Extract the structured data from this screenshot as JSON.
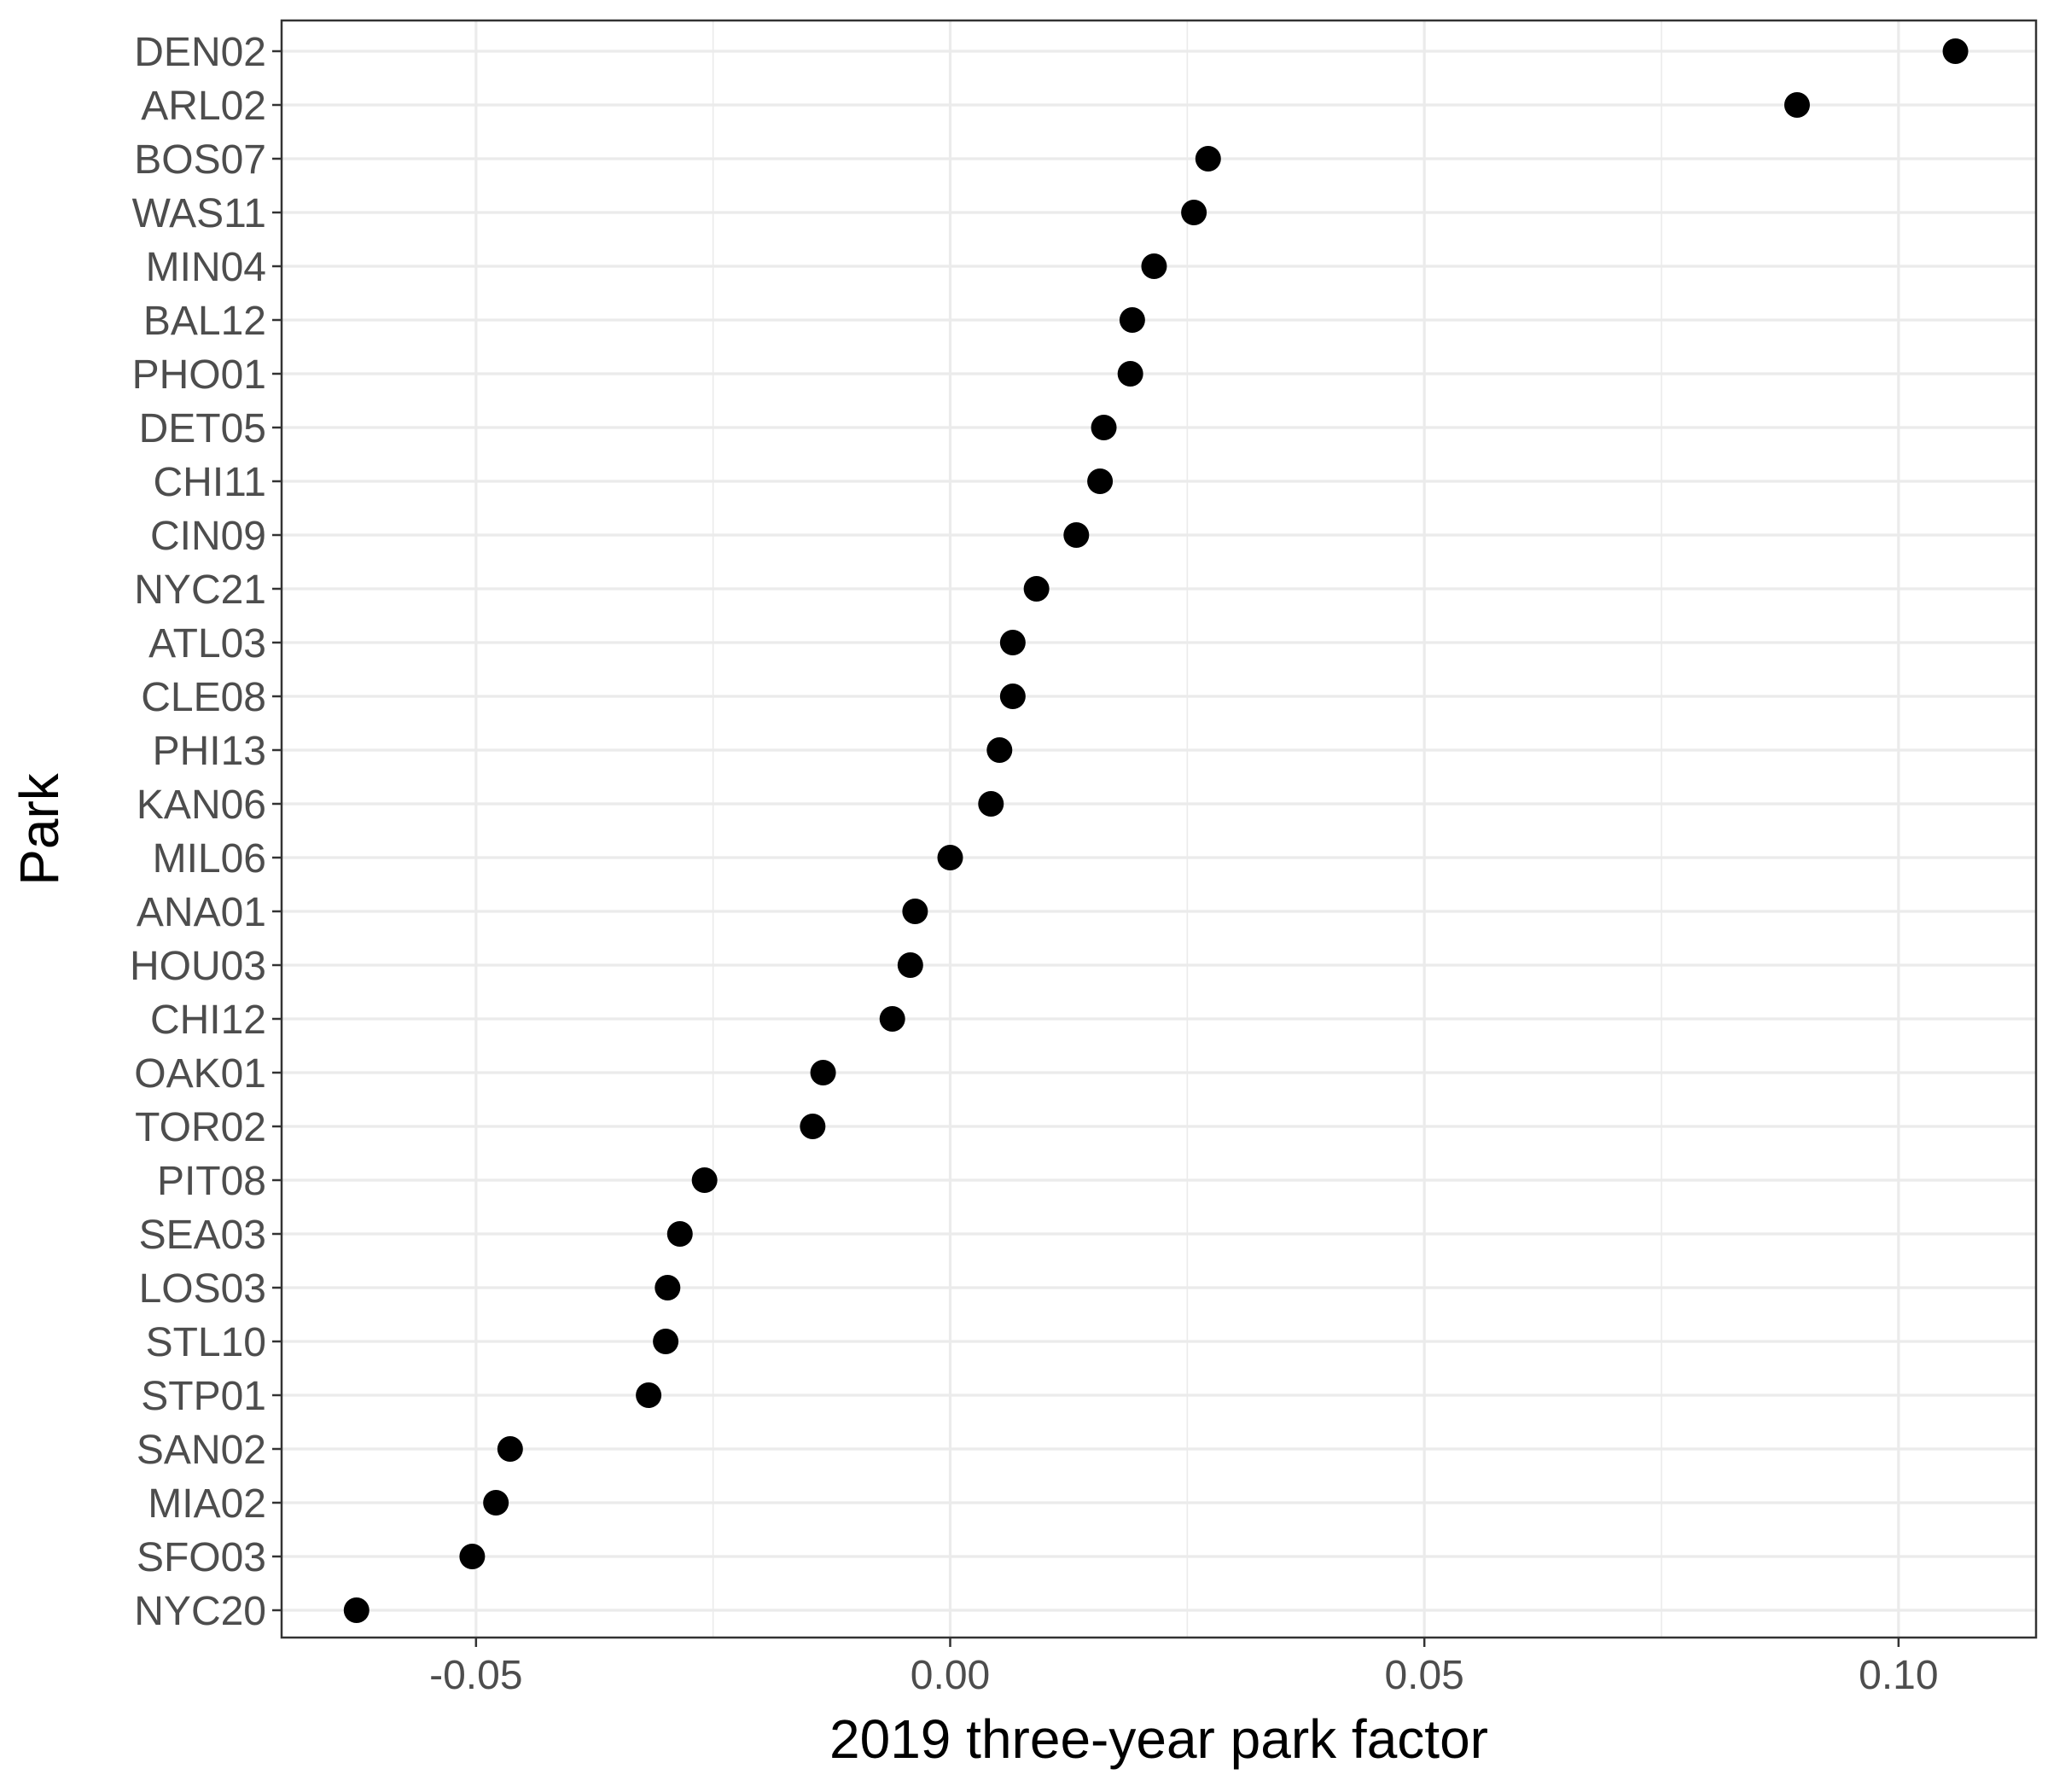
{
  "chart_data": {
    "type": "scatter",
    "title": "",
    "xlabel": "2019 three-year park factor",
    "ylabel": "Park",
    "xlim": [
      -0.0705,
      0.1145
    ],
    "x_ticks": [
      -0.05,
      0.0,
      0.05,
      0.1
    ],
    "x_tick_labels": [
      "-0.05",
      "0.00",
      "0.05",
      "0.10"
    ],
    "grid": true,
    "legend": "none",
    "colors": {
      "point": "#000000",
      "grid": "#ebebeb",
      "panel_border": "#333333",
      "tick_text": "#4d4d4d"
    },
    "categories": [
      "DEN02",
      "ARL02",
      "BOS07",
      "WAS11",
      "MIN04",
      "BAL12",
      "PHO01",
      "DET05",
      "CHI11",
      "CIN09",
      "NYC21",
      "ATL03",
      "CLE08",
      "PHI13",
      "KAN06",
      "MIL06",
      "ANA01",
      "HOU03",
      "CHI12",
      "OAK01",
      "TOR02",
      "PIT08",
      "SEA03",
      "LOS03",
      "STL10",
      "STP01",
      "SAN02",
      "MIA02",
      "SFO03",
      "NYC20"
    ],
    "values": [
      0.106,
      0.0893,
      0.0272,
      0.0257,
      0.0215,
      0.0192,
      0.019,
      0.0162,
      0.0158,
      0.0133,
      0.0091,
      0.0066,
      0.0066,
      0.0052,
      0.0043,
      0.0,
      -0.0037,
      -0.0042,
      -0.0061,
      -0.0134,
      -0.0145,
      -0.0259,
      -0.0285,
      -0.0298,
      -0.03,
      -0.0318,
      -0.0464,
      -0.0479,
      -0.0504,
      -0.0626
    ]
  }
}
